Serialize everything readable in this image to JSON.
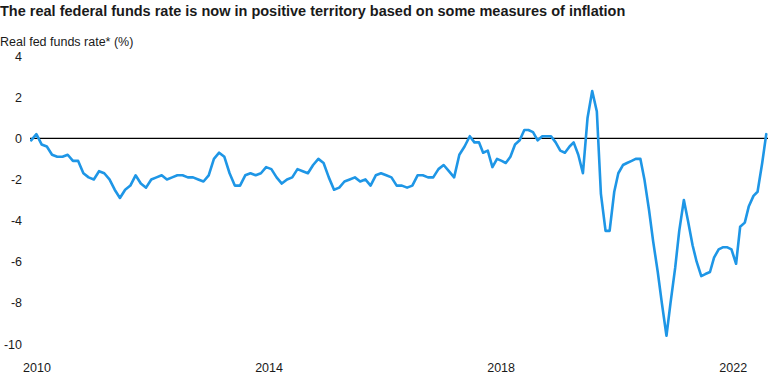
{
  "chart_data": {
    "type": "line",
    "title": "The real federal funds rate is now in positive territory based on some measures of inflation",
    "y_label": "Real fed funds rate* (%)",
    "color": "#1e96e6",
    "xlim": [
      2009.88,
      2022.6
    ],
    "xticks": [
      2010,
      2014,
      2018,
      2022
    ],
    "ylim": [
      -10,
      4
    ],
    "yticks": [
      -10,
      -8,
      -6,
      -4,
      -2,
      0,
      2,
      4
    ],
    "x": [
      2009.9,
      2009.99,
      2010.08,
      2010.17,
      2010.26,
      2010.35,
      2010.44,
      2010.53,
      2010.62,
      2010.71,
      2010.8,
      2010.89,
      2010.98,
      2011.07,
      2011.16,
      2011.25,
      2011.34,
      2011.43,
      2011.52,
      2011.61,
      2011.7,
      2011.79,
      2011.88,
      2011.97,
      2012.06,
      2012.15,
      2012.24,
      2012.33,
      2012.42,
      2012.51,
      2012.6,
      2012.69,
      2012.78,
      2012.87,
      2012.96,
      2013.05,
      2013.14,
      2013.23,
      2013.32,
      2013.41,
      2013.5,
      2013.59,
      2013.68,
      2013.77,
      2013.86,
      2013.95,
      2014.04,
      2014.13,
      2014.22,
      2014.31,
      2014.4,
      2014.49,
      2014.58,
      2014.67,
      2014.76,
      2014.85,
      2014.94,
      2015.03,
      2015.12,
      2015.21,
      2015.3,
      2015.39,
      2015.48,
      2015.57,
      2015.66,
      2015.75,
      2015.84,
      2015.93,
      2016.02,
      2016.11,
      2016.2,
      2016.29,
      2016.38,
      2016.47,
      2016.56,
      2016.65,
      2016.74,
      2016.83,
      2016.92,
      2017.01,
      2017.1,
      2017.19,
      2017.28,
      2017.37,
      2017.46,
      2017.54,
      2017.62,
      2017.69,
      2017.77,
      2017.85,
      2017.93,
      2018.01,
      2018.08,
      2018.16,
      2018.24,
      2018.32,
      2018.4,
      2018.47,
      2018.55,
      2018.63,
      2018.71,
      2018.79,
      2018.86,
      2018.94,
      2019.02,
      2019.1,
      2019.18,
      2019.25,
      2019.33,
      2019.41,
      2019.49,
      2019.57,
      2019.65,
      2019.72,
      2019.8,
      2019.87,
      2019.95,
      2020.02,
      2020.1,
      2020.17,
      2020.25,
      2020.32,
      2020.4,
      2020.47,
      2020.55,
      2020.62,
      2020.7,
      2020.77,
      2020.85,
      2020.92,
      2021,
      2021.07,
      2021.15,
      2021.22,
      2021.3,
      2021.37,
      2021.45,
      2021.52,
      2021.6,
      2021.67,
      2021.75,
      2021.82,
      2021.9,
      2021.97,
      2022.05,
      2022.12,
      2022.2,
      2022.27,
      2022.35,
      2022.42,
      2022.5,
      2022.57
    ],
    "values": [
      -0.1,
      0.2,
      -0.3,
      -0.4,
      -0.8,
      -0.9,
      -0.9,
      -0.8,
      -1.1,
      -1.1,
      -1.7,
      -1.9,
      -2.0,
      -1.6,
      -1.7,
      -2.0,
      -2.5,
      -2.9,
      -2.5,
      -2.3,
      -1.8,
      -2.2,
      -2.4,
      -2.0,
      -1.9,
      -1.8,
      -2.0,
      -1.9,
      -1.8,
      -1.8,
      -1.9,
      -1.9,
      -2.0,
      -2.1,
      -1.8,
      -1.0,
      -0.7,
      -0.9,
      -1.7,
      -2.3,
      -2.3,
      -1.8,
      -1.7,
      -1.8,
      -1.7,
      -1.4,
      -1.5,
      -1.9,
      -2.2,
      -2.0,
      -1.9,
      -1.5,
      -1.6,
      -1.7,
      -1.3,
      -1.0,
      -1.2,
      -1.9,
      -2.5,
      -2.4,
      -2.1,
      -2.0,
      -1.9,
      -2.1,
      -2.0,
      -2.3,
      -1.8,
      -1.7,
      -1.8,
      -1.9,
      -2.3,
      -2.3,
      -2.4,
      -2.3,
      -1.8,
      -1.8,
      -1.9,
      -1.9,
      -1.5,
      -1.3,
      -1.6,
      -1.9,
      -0.8,
      -0.4,
      0.1,
      -0.2,
      -0.2,
      -0.7,
      -0.6,
      -1.4,
      -1.0,
      -1.1,
      -1.2,
      -0.9,
      -0.3,
      -0.1,
      0.4,
      0.4,
      0.3,
      -0.1,
      0.1,
      0.1,
      0.1,
      -0.2,
      -0.6,
      -0.7,
      -0.4,
      -0.2,
      -0.8,
      -1.7,
      1.0,
      2.3,
      1.3,
      -2.7,
      -4.5,
      -4.5,
      -2.6,
      -1.7,
      -1.3,
      -1.2,
      -1.1,
      -1.0,
      -1.0,
      -2.0,
      -3.5,
      -5.0,
      -6.5,
      -8.0,
      -9.6,
      -8.0,
      -6.3,
      -4.5,
      -3.0,
      -4.0,
      -5.2,
      -6.0,
      -6.7,
      -6.6,
      -6.5,
      -5.8,
      -5.4,
      -5.3,
      -5.3,
      -5.4,
      -6.1,
      -4.3,
      -4.1,
      -3.3,
      -2.8,
      -2.6,
      -1.2,
      0.2
    ]
  }
}
